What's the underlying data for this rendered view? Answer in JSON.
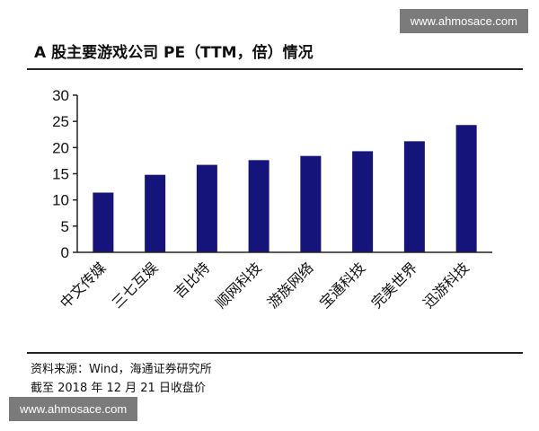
{
  "watermark": {
    "top": "www.ahmosace.com",
    "bottom": "www.ahmosace.com"
  },
  "chart_data": {
    "type": "bar",
    "title": "A 股主要游戏公司 PE（TTM，倍）情况",
    "categories": [
      "中文传媒",
      "三七互娱",
      "吉比特",
      "顺网科技",
      "游族网络",
      "宝通科技",
      "完美世界",
      "迅游科技"
    ],
    "values": [
      11.4,
      14.8,
      16.7,
      17.6,
      18.4,
      19.3,
      21.2,
      24.3
    ],
    "y_ticks": [
      0,
      5,
      10,
      15,
      20,
      25,
      30
    ],
    "ylim": [
      0,
      30
    ],
    "xlabel": "",
    "ylabel": "",
    "grid": false,
    "bar_color": "#14147a"
  },
  "notes": {
    "source": "资料来源：Wind，海通证券研究所",
    "date": "截至 2018 年 12 月 21 日收盘价"
  }
}
